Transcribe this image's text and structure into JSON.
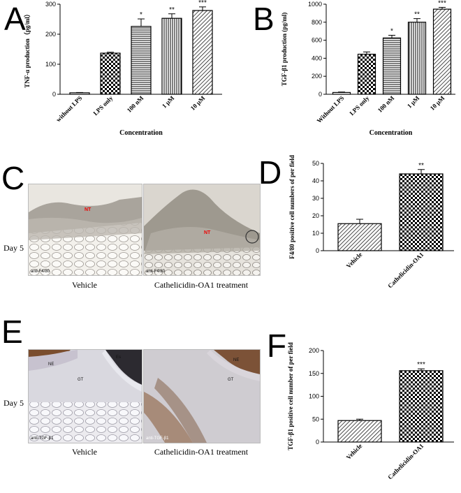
{
  "panels": {
    "A": "A",
    "B": "B",
    "C": "C",
    "D": "D",
    "E": "E",
    "F": "F"
  },
  "micrographs": {
    "C": {
      "day_label": "Day 5",
      "left_caption": "Vehicle",
      "right_caption": "Cathelicidin-OA1 treatment",
      "left_stain": "anti-F4/80",
      "right_stain": "anti-F4/80",
      "left_marks": [
        "NT"
      ],
      "right_marks": [
        "NT"
      ]
    },
    "E": {
      "day_label": "Day 5",
      "left_caption": "Vehicle",
      "right_caption": "Cathelicidin-OA1 treatment",
      "left_stain": "anti-TGF-β1",
      "right_stain": "anti-TGF-β1",
      "left_marks": [
        "NE",
        "GT",
        "Es"
      ],
      "right_marks": [
        "NE",
        "GT"
      ]
    }
  },
  "chart_data": [
    {
      "id": "A",
      "type": "bar",
      "categories": [
        "without LPS",
        "LPS only",
        "100 nM",
        "1 μM",
        "10 μM"
      ],
      "values": [
        5,
        137,
        226,
        253,
        279
      ],
      "errors": [
        1,
        3,
        25,
        15,
        12
      ],
      "significance": [
        "",
        "",
        "*",
        "**",
        "***"
      ],
      "patterns": [
        "plain",
        "checker",
        "hlines",
        "vlines",
        "diag"
      ],
      "ylabel": "TNF-α production（pg/ml）",
      "xlabel": "Concentration",
      "ylim": [
        0,
        300
      ],
      "yticks": [
        0,
        100,
        200,
        300
      ]
    },
    {
      "id": "B",
      "type": "bar",
      "categories": [
        "Without LPS",
        "LPS only",
        "100 nM",
        "1 μM",
        "10 μM"
      ],
      "values": [
        20,
        445,
        625,
        800,
        945
      ],
      "errors": [
        5,
        25,
        30,
        40,
        20
      ],
      "significance": [
        "",
        "",
        "*",
        "**",
        "***"
      ],
      "patterns": [
        "plain",
        "checker",
        "hlines",
        "vlines",
        "diag"
      ],
      "ylabel": "TGF-β1 production (pg/ml)",
      "xlabel": "Concentration",
      "ylim": [
        0,
        1000
      ],
      "yticks": [
        0,
        200,
        400,
        600,
        800,
        1000
      ]
    },
    {
      "id": "D",
      "type": "bar",
      "categories": [
        "Vehicle",
        "Cathelicidin-OA1"
      ],
      "values": [
        15.5,
        44
      ],
      "errors": [
        2.5,
        2.5
      ],
      "significance": [
        "",
        "**"
      ],
      "patterns": [
        "diag",
        "checker"
      ],
      "ylabel": "F4/80 positive cell numbers of per field",
      "xlabel": "",
      "ylim": [
        0,
        50
      ],
      "yticks": [
        0,
        10,
        20,
        30,
        40,
        50
      ]
    },
    {
      "id": "F",
      "type": "bar",
      "categories": [
        "Vehicle",
        "Cathelicidin-OA1"
      ],
      "values": [
        47,
        156
      ],
      "errors": [
        3,
        4
      ],
      "significance": [
        "",
        "***"
      ],
      "patterns": [
        "diag",
        "checker"
      ],
      "ylabel": "TGF-β1 positive cell number of per field",
      "xlabel": "",
      "ylim": [
        0,
        200
      ],
      "yticks": [
        0,
        50,
        100,
        150,
        200
      ]
    }
  ]
}
